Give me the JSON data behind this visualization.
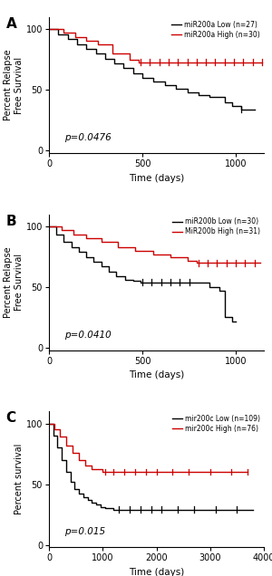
{
  "panels": [
    {
      "label": "A",
      "ylabel": "Percent Relapse\nFree Survival",
      "xlabel": "Time (days)",
      "pvalue": "p=0.0476",
      "xlim": [
        0,
        1150
      ],
      "xticks": [
        0,
        500,
        1000
      ],
      "ylim": [
        -2,
        110
      ],
      "yticks": [
        0,
        50,
        100
      ],
      "legend": [
        "miR200a Low (n=27)",
        "miR200a High (n=30)"
      ],
      "low_color": "#000000",
      "high_color": "#cc0000",
      "low_curve_x": [
        0,
        50,
        50,
        100,
        100,
        150,
        150,
        200,
        200,
        250,
        250,
        300,
        300,
        350,
        350,
        400,
        400,
        450,
        450,
        500,
        500,
        560,
        560,
        620,
        620,
        680,
        680,
        740,
        740,
        800,
        800,
        860,
        860,
        940,
        940,
        980,
        980,
        1030,
        1030,
        1100
      ],
      "low_curve_y": [
        100,
        100,
        96,
        96,
        92,
        92,
        88,
        88,
        84,
        84,
        80,
        80,
        76,
        76,
        72,
        72,
        68,
        68,
        64,
        64,
        60,
        60,
        57,
        57,
        54,
        54,
        51,
        51,
        48,
        48,
        46,
        46,
        44,
        44,
        40,
        40,
        37,
        37,
        34,
        34
      ],
      "high_curve_x": [
        0,
        80,
        80,
        140,
        140,
        200,
        200,
        260,
        260,
        340,
        340,
        430,
        430,
        480,
        480,
        1140
      ],
      "high_curve_y": [
        100,
        100,
        97,
        97,
        94,
        94,
        91,
        91,
        88,
        88,
        80,
        80,
        75,
        75,
        73,
        73
      ],
      "low_censors_x": [
        1030
      ],
      "low_censors_y": [
        34
      ],
      "high_censors_x": [
        490,
        540,
        590,
        640,
        690,
        740,
        790,
        840,
        890,
        940,
        990,
        1040,
        1090,
        1140
      ],
      "high_censors_y": [
        73,
        73,
        73,
        73,
        73,
        73,
        73,
        73,
        73,
        73,
        73,
        73,
        73,
        73
      ]
    },
    {
      "label": "B",
      "ylabel": "Percent Relapse\nFree Survival",
      "xlabel": "Time (days)",
      "pvalue": "p=0.0410",
      "xlim": [
        0,
        1150
      ],
      "xticks": [
        0,
        500,
        1000
      ],
      "ylim": [
        -2,
        110
      ],
      "yticks": [
        0,
        50,
        100
      ],
      "legend": [
        "miR200b Low (n=30)",
        "MiR200b High (n=31)"
      ],
      "low_color": "#000000",
      "high_color": "#cc0000",
      "low_curve_x": [
        0,
        40,
        40,
        80,
        80,
        120,
        120,
        160,
        160,
        200,
        200,
        240,
        240,
        280,
        280,
        320,
        320,
        360,
        360,
        410,
        410,
        450,
        450,
        490,
        490,
        540,
        540,
        860,
        860,
        910,
        910,
        940,
        940,
        980,
        980,
        1000
      ],
      "low_curve_y": [
        100,
        100,
        93,
        93,
        87,
        87,
        83,
        83,
        79,
        79,
        75,
        75,
        71,
        71,
        67,
        67,
        63,
        63,
        59,
        59,
        56,
        56,
        55,
        55,
        54,
        54,
        54,
        54,
        50,
        50,
        47,
        47,
        25,
        25,
        22,
        22
      ],
      "high_curve_x": [
        0,
        70,
        70,
        130,
        130,
        200,
        200,
        280,
        280,
        370,
        370,
        460,
        460,
        560,
        560,
        650,
        650,
        740,
        740,
        790,
        790,
        1130
      ],
      "high_curve_y": [
        100,
        100,
        97,
        97,
        93,
        93,
        90,
        90,
        87,
        87,
        83,
        83,
        80,
        80,
        77,
        77,
        75,
        75,
        72,
        72,
        70,
        70
      ],
      "low_censors_x": [
        500,
        550,
        600,
        650,
        700,
        750
      ],
      "low_censors_y": [
        54,
        54,
        54,
        54,
        54,
        54
      ],
      "high_censors_x": [
        800,
        850,
        900,
        950,
        1000,
        1050,
        1100
      ],
      "high_censors_y": [
        70,
        70,
        70,
        70,
        70,
        70,
        70
      ]
    },
    {
      "label": "C",
      "ylabel": "Percent survival",
      "xlabel": "Time (days)",
      "pvalue": "p=0.015",
      "xlim": [
        0,
        4000
      ],
      "xticks": [
        0,
        1000,
        2000,
        3000,
        4000
      ],
      "ylim": [
        -2,
        110
      ],
      "yticks": [
        0,
        50,
        100
      ],
      "legend": [
        "mir200c Low (n=109)",
        "mir200c High (n=76)"
      ],
      "low_color": "#000000",
      "high_color": "#cc0000",
      "low_curve_x": [
        0,
        80,
        80,
        160,
        160,
        240,
        240,
        320,
        320,
        400,
        400,
        480,
        480,
        560,
        560,
        640,
        640,
        720,
        720,
        800,
        800,
        880,
        880,
        960,
        960,
        1040,
        1040,
        1200,
        1200,
        3800
      ],
      "low_curve_y": [
        100,
        100,
        90,
        90,
        80,
        80,
        70,
        70,
        60,
        60,
        52,
        52,
        46,
        46,
        42,
        42,
        39,
        39,
        37,
        37,
        35,
        35,
        33,
        33,
        31,
        31,
        30,
        30,
        29,
        29
      ],
      "high_curve_x": [
        0,
        100,
        100,
        200,
        200,
        320,
        320,
        440,
        440,
        560,
        560,
        680,
        680,
        800,
        800,
        1000,
        1000,
        3700
      ],
      "high_curve_y": [
        100,
        100,
        95,
        95,
        89,
        89,
        82,
        82,
        76,
        76,
        70,
        70,
        65,
        65,
        62,
        62,
        60,
        60
      ],
      "low_censors_x": [
        1300,
        1500,
        1700,
        1900,
        2100,
        2400,
        2700,
        3100,
        3500
      ],
      "low_censors_y": [
        29,
        29,
        29,
        29,
        29,
        29,
        29,
        29,
        29
      ],
      "high_censors_x": [
        1050,
        1200,
        1400,
        1600,
        1800,
        2000,
        2300,
        2600,
        3000,
        3400,
        3700
      ],
      "high_censors_y": [
        60,
        60,
        60,
        60,
        60,
        60,
        60,
        60,
        60,
        60,
        60
      ]
    }
  ]
}
